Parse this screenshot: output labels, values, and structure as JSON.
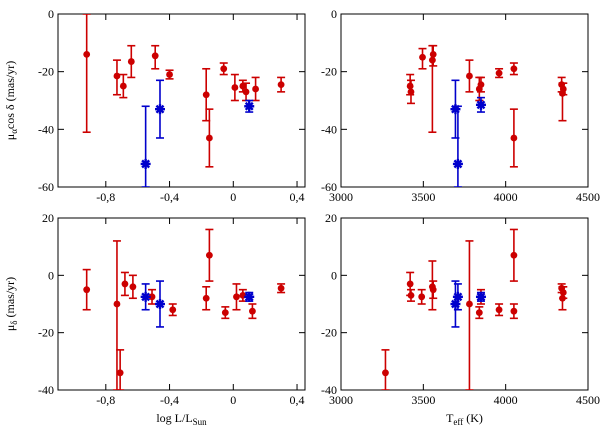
{
  "chart_data": [
    {
      "type": "scatter",
      "xlabel": "",
      "ylabel_parts": [
        "μ",
        "α",
        "cos δ (mas/yr)"
      ],
      "xlim": [
        -1.1,
        0.45
      ],
      "ylim": [
        -60,
        0
      ],
      "xticks": [
        -0.8,
        -0.4,
        0,
        0.4
      ],
      "xtick_labels": [
        "-0,8",
        "-0,4",
        "0",
        "0,4"
      ],
      "yticks": [
        -60,
        -40,
        -20,
        0
      ],
      "ytick_labels": [
        "-60",
        "-40",
        "-20",
        "0"
      ],
      "series": [
        {
          "name": "red",
          "color": "#cc0000",
          "marker": "circle",
          "points": [
            {
              "x": -0.92,
              "y": -14,
              "ylo": -41,
              "yhi": 0
            },
            {
              "x": -0.73,
              "y": -21.5,
              "ylo": -28,
              "yhi": -16
            },
            {
              "x": -0.69,
              "y": -25,
              "ylo": -29,
              "yhi": -21
            },
            {
              "x": -0.64,
              "y": -16.5,
              "ylo": -22,
              "yhi": -11
            },
            {
              "x": -0.49,
              "y": -14.5,
              "ylo": -19,
              "yhi": -11
            },
            {
              "x": -0.4,
              "y": -21,
              "ylo": -22.5,
              "yhi": -19.5
            },
            {
              "x": -0.17,
              "y": -28,
              "ylo": -37,
              "yhi": -19
            },
            {
              "x": -0.15,
              "y": -43,
              "ylo": -53,
              "yhi": -33
            },
            {
              "x": -0.06,
              "y": -19,
              "ylo": -21,
              "yhi": -17
            },
            {
              "x": 0.01,
              "y": -25.5,
              "ylo": -30,
              "yhi": -21
            },
            {
              "x": 0.06,
              "y": -25,
              "ylo": -27,
              "yhi": -23
            },
            {
              "x": 0.08,
              "y": -27,
              "ylo": -30,
              "yhi": -24
            },
            {
              "x": 0.14,
              "y": -26,
              "ylo": -30,
              "yhi": -22
            },
            {
              "x": 0.3,
              "y": -24.5,
              "ylo": -27,
              "yhi": -22
            }
          ]
        },
        {
          "name": "blue",
          "color": "#0000cc",
          "marker": "asterisk",
          "points": [
            {
              "x": -0.55,
              "y": -52,
              "ylo": -60,
              "yhi": -32
            },
            {
              "x": -0.46,
              "y": -33,
              "ylo": -43,
              "yhi": -23
            },
            {
              "x": 0.1,
              "y": -32,
              "ylo": -34,
              "yhi": -30
            }
          ]
        }
      ]
    },
    {
      "type": "scatter",
      "xlabel": "",
      "ylabel_parts": [],
      "xlim": [
        3000,
        4500
      ],
      "ylim": [
        -60,
        0
      ],
      "xticks": [
        3000,
        3500,
        4000,
        4500
      ],
      "xtick_labels": [
        "3000",
        "3500",
        "4000",
        "4500"
      ],
      "yticks": [
        -60,
        -40,
        -20,
        0
      ],
      "ytick_labels": [
        "-60",
        "-40",
        "-20",
        "0"
      ],
      "series": [
        {
          "name": "red",
          "color": "#cc0000",
          "marker": "circle",
          "points": [
            {
              "x": 3420,
              "y": -25,
              "ylo": -28,
              "yhi": -21
            },
            {
              "x": 3425,
              "y": -27,
              "ylo": -31,
              "yhi": -23
            },
            {
              "x": 3495,
              "y": -15,
              "ylo": -19,
              "yhi": -12
            },
            {
              "x": 3555,
              "y": -16,
              "ylo": -41,
              "yhi": -11
            },
            {
              "x": 3560,
              "y": -14,
              "ylo": -18,
              "yhi": -11
            },
            {
              "x": 3780,
              "y": -21.5,
              "ylo": -27,
              "yhi": -16
            },
            {
              "x": 3840,
              "y": -26,
              "ylo": -30,
              "yhi": -22
            },
            {
              "x": 3850,
              "y": -24.5,
              "ylo": -27,
              "yhi": -22
            },
            {
              "x": 3960,
              "y": -20.5,
              "ylo": -22,
              "yhi": -19
            },
            {
              "x": 4050,
              "y": -43,
              "ylo": -53,
              "yhi": -33
            },
            {
              "x": 4050,
              "y": -19,
              "ylo": -21,
              "yhi": -17
            },
            {
              "x": 4340,
              "y": -24.5,
              "ylo": -27,
              "yhi": -22
            },
            {
              "x": 4345,
              "y": -27.5,
              "ylo": -37,
              "yhi": -24
            },
            {
              "x": 4350,
              "y": -26,
              "ylo": -28,
              "yhi": -24
            }
          ]
        },
        {
          "name": "blue",
          "color": "#0000cc",
          "marker": "asterisk",
          "points": [
            {
              "x": 3695,
              "y": -33,
              "ylo": -43,
              "yhi": -23
            },
            {
              "x": 3710,
              "y": -52,
              "ylo": -60,
              "yhi": -32
            },
            {
              "x": 3850,
              "y": -31.5,
              "ylo": -34,
              "yhi": -29
            }
          ]
        }
      ]
    },
    {
      "type": "scatter",
      "xlabel_parts": [
        "log L/L",
        "Sun"
      ],
      "ylabel_parts": [
        "μ",
        "δ",
        " (mas/yr)"
      ],
      "xlim": [
        -1.1,
        0.45
      ],
      "ylim": [
        -40,
        20
      ],
      "xticks": [
        -0.8,
        -0.4,
        0,
        0.4
      ],
      "xtick_labels": [
        "-0,8",
        "-0,4",
        "0",
        "0,4"
      ],
      "yticks": [
        -40,
        -20,
        0,
        20
      ],
      "ytick_labels": [
        "-40",
        "-20",
        "0",
        "20"
      ],
      "series": [
        {
          "name": "red",
          "color": "#cc0000",
          "marker": "circle",
          "points": [
            {
              "x": -0.92,
              "y": -5,
              "ylo": -12,
              "yhi": 2
            },
            {
              "x": -0.73,
              "y": -10,
              "ylo": -40,
              "yhi": 12
            },
            {
              "x": -0.71,
              "y": -34,
              "ylo": -40,
              "yhi": -26
            },
            {
              "x": -0.68,
              "y": -3,
              "ylo": -7,
              "yhi": 1
            },
            {
              "x": -0.63,
              "y": -4,
              "ylo": -8,
              "yhi": 0
            },
            {
              "x": -0.51,
              "y": -7.5,
              "ylo": -10,
              "yhi": -5
            },
            {
              "x": -0.38,
              "y": -12,
              "ylo": -14,
              "yhi": -10
            },
            {
              "x": -0.17,
              "y": -8,
              "ylo": -12,
              "yhi": -4
            },
            {
              "x": -0.15,
              "y": 7,
              "ylo": -2,
              "yhi": 16
            },
            {
              "x": -0.05,
              "y": -13,
              "ylo": -15,
              "yhi": -11
            },
            {
              "x": 0.02,
              "y": -7.5,
              "ylo": -12,
              "yhi": -3
            },
            {
              "x": 0.06,
              "y": -7,
              "ylo": -9,
              "yhi": -5
            },
            {
              "x": 0.12,
              "y": -12.5,
              "ylo": -15,
              "yhi": -10
            },
            {
              "x": 0.3,
              "y": -4.5,
              "ylo": -6,
              "yhi": -3
            }
          ]
        },
        {
          "name": "blue",
          "color": "#0000cc",
          "marker": "asterisk",
          "points": [
            {
              "x": -0.55,
              "y": -7.5,
              "ylo": -12,
              "yhi": -3
            },
            {
              "x": -0.46,
              "y": -10,
              "ylo": -18,
              "yhi": -2
            },
            {
              "x": 0.1,
              "y": -7.5,
              "ylo": -9,
              "yhi": -6
            }
          ]
        }
      ]
    },
    {
      "type": "scatter",
      "xlabel_parts": [
        "T",
        "eff",
        " (K)"
      ],
      "ylabel_parts": [],
      "xlim": [
        3000,
        4500
      ],
      "ylim": [
        -40,
        20
      ],
      "xticks": [
        3000,
        3500,
        4000,
        4500
      ],
      "xtick_labels": [
        "3000",
        "3500",
        "4000",
        "4500"
      ],
      "yticks": [
        -40,
        -20,
        0,
        20
      ],
      "ytick_labels": [
        "-40",
        "-20",
        "0",
        "20"
      ],
      "series": [
        {
          "name": "red",
          "color": "#cc0000",
          "marker": "circle",
          "points": [
            {
              "x": 3270,
              "y": -34,
              "ylo": -40,
              "yhi": -26
            },
            {
              "x": 3420,
              "y": -3,
              "ylo": -7,
              "yhi": 1
            },
            {
              "x": 3425,
              "y": -7,
              "ylo": -9,
              "yhi": -5
            },
            {
              "x": 3490,
              "y": -7.5,
              "ylo": -10,
              "yhi": -5
            },
            {
              "x": 3555,
              "y": -4,
              "ylo": -12,
              "yhi": 5
            },
            {
              "x": 3560,
              "y": -5,
              "ylo": -8,
              "yhi": -2
            },
            {
              "x": 3780,
              "y": -10,
              "ylo": -40,
              "yhi": 12
            },
            {
              "x": 3840,
              "y": -13,
              "ylo": -15,
              "yhi": -11
            },
            {
              "x": 3850,
              "y": -7.5,
              "ylo": -10,
              "yhi": -5
            },
            {
              "x": 3960,
              "y": -12,
              "ylo": -14,
              "yhi": -10
            },
            {
              "x": 4050,
              "y": 7,
              "ylo": -2,
              "yhi": 16
            },
            {
              "x": 4050,
              "y": -12.5,
              "ylo": -15,
              "yhi": -10
            },
            {
              "x": 4340,
              "y": -4.5,
              "ylo": -6,
              "yhi": -3
            },
            {
              "x": 4345,
              "y": -8,
              "ylo": -12,
              "yhi": -4
            },
            {
              "x": 4350,
              "y": -6,
              "ylo": -8,
              "yhi": -4
            }
          ]
        },
        {
          "name": "blue",
          "color": "#0000cc",
          "marker": "asterisk",
          "points": [
            {
              "x": 3695,
              "y": -10,
              "ylo": -18,
              "yhi": -2
            },
            {
              "x": 3710,
              "y": -7.5,
              "ylo": -12,
              "yhi": -3
            },
            {
              "x": 3850,
              "y": -7.5,
              "ylo": -9,
              "yhi": -6
            }
          ]
        }
      ]
    }
  ]
}
